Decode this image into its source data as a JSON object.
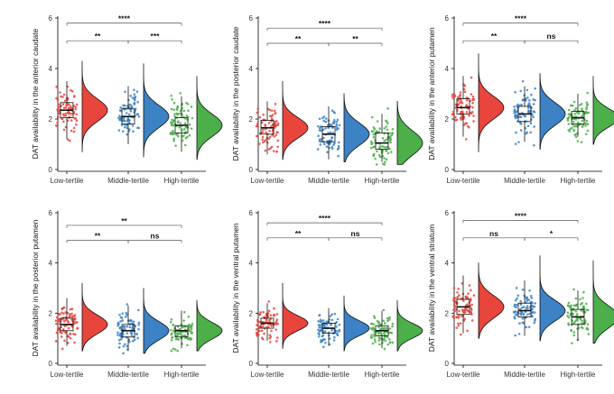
{
  "colors": {
    "low": "#E8453C",
    "middle": "#3C82C4",
    "high": "#4CAF4A",
    "axis": "#000000",
    "bracket": "#555555",
    "median": "#111111"
  },
  "chart_data": [
    {
      "type": "raincloud",
      "ylabel": "DAT availability in the anterior caudate",
      "categories": [
        "Low-tertile",
        "Middle-tertile",
        "High-tertile"
      ],
      "ylim": [
        0,
        6
      ],
      "yticks": [
        0,
        2,
        4,
        6
      ],
      "series": [
        {
          "name": "Low-tertile",
          "q1": 2.05,
          "median": 2.35,
          "q3": 2.65,
          "wlo": 1.2,
          "whi": 3.5,
          "min": 0.7,
          "max": 4.3,
          "n": 80
        },
        {
          "name": "Middle-tertile",
          "q1": 1.8,
          "median": 2.1,
          "q3": 2.4,
          "wlo": 1.0,
          "whi": 3.3,
          "min": 0.5,
          "max": 4.2,
          "n": 80
        },
        {
          "name": "High-tertile",
          "q1": 1.45,
          "median": 1.75,
          "q3": 2.05,
          "wlo": 0.7,
          "whi": 2.9,
          "min": 0.4,
          "max": 3.7,
          "n": 80
        }
      ],
      "comparisons": [
        {
          "from": 0,
          "to": 2,
          "label": "****",
          "y": 5.8
        },
        {
          "from": 0,
          "to": 1,
          "label": "**",
          "y": 5.1
        },
        {
          "from": 1,
          "to": 2,
          "label": "***",
          "y": 5.1
        }
      ]
    },
    {
      "type": "raincloud",
      "ylabel": "DAT availability in the posterior caudate",
      "categories": [
        "Low-tertile",
        "Middle-tertile",
        "High-tertile"
      ],
      "ylim": [
        0,
        6
      ],
      "yticks": [
        0,
        2,
        4,
        6
      ],
      "series": [
        {
          "name": "Low-tertile",
          "q1": 1.4,
          "median": 1.65,
          "q3": 1.95,
          "wlo": 0.6,
          "whi": 2.7,
          "min": 0.4,
          "max": 3.5,
          "n": 80
        },
        {
          "name": "Middle-tertile",
          "q1": 1.1,
          "median": 1.4,
          "q3": 1.7,
          "wlo": 0.4,
          "whi": 2.5,
          "min": 0.3,
          "max": 3.0,
          "n": 80
        },
        {
          "name": "High-tertile",
          "q1": 0.8,
          "median": 1.05,
          "q3": 1.45,
          "wlo": 0.3,
          "whi": 2.2,
          "min": 0.2,
          "max": 2.7,
          "n": 80
        }
      ],
      "comparisons": [
        {
          "from": 0,
          "to": 2,
          "label": "****",
          "y": 5.6
        },
        {
          "from": 0,
          "to": 1,
          "label": "**",
          "y": 5.0
        },
        {
          "from": 1,
          "to": 2,
          "label": "**",
          "y": 5.0
        }
      ]
    },
    {
      "type": "raincloud",
      "ylabel": "DAT availability in the anterior putamen",
      "categories": [
        "Low-tertile",
        "Middle-tertile",
        "High-tertile"
      ],
      "ylim": [
        0,
        6
      ],
      "yticks": [
        0,
        2,
        4,
        6
      ],
      "series": [
        {
          "name": "Low-tertile",
          "q1": 2.2,
          "median": 2.45,
          "q3": 2.8,
          "wlo": 1.3,
          "whi": 3.7,
          "min": 0.7,
          "max": 4.6,
          "n": 80
        },
        {
          "name": "Middle-tertile",
          "q1": 1.9,
          "median": 2.2,
          "q3": 2.5,
          "wlo": 1.1,
          "whi": 3.3,
          "min": 0.8,
          "max": 3.8,
          "n": 80
        },
        {
          "name": "High-tertile",
          "q1": 1.8,
          "median": 2.05,
          "q3": 2.3,
          "wlo": 1.3,
          "whi": 3.0,
          "min": 1.0,
          "max": 3.7,
          "n": 80
        }
      ],
      "comparisons": [
        {
          "from": 0,
          "to": 2,
          "label": "****",
          "y": 5.8
        },
        {
          "from": 0,
          "to": 1,
          "label": "**",
          "y": 5.1
        },
        {
          "from": 1,
          "to": 2,
          "label": "ns",
          "y": 5.1
        }
      ]
    },
    {
      "type": "raincloud",
      "ylabel": "DAT availability in the posterior putamen",
      "categories": [
        "Low-tertile",
        "Middle-tertile",
        "High-tertile"
      ],
      "ylim": [
        0,
        6
      ],
      "yticks": [
        0,
        2,
        4,
        6
      ],
      "series": [
        {
          "name": "Low-tertile",
          "q1": 1.3,
          "median": 1.55,
          "q3": 1.8,
          "wlo": 0.7,
          "whi": 2.6,
          "min": 0.5,
          "max": 3.2,
          "n": 80
        },
        {
          "name": "Middle-tertile",
          "q1": 1.05,
          "median": 1.3,
          "q3": 1.55,
          "wlo": 0.5,
          "whi": 2.3,
          "min": 0.4,
          "max": 3.0,
          "n": 80
        },
        {
          "name": "High-tertile",
          "q1": 1.05,
          "median": 1.3,
          "q3": 1.5,
          "wlo": 0.6,
          "whi": 2.1,
          "min": 0.5,
          "max": 2.5,
          "n": 80
        }
      ],
      "comparisons": [
        {
          "from": 0,
          "to": 2,
          "label": "**",
          "y": 5.5
        },
        {
          "from": 0,
          "to": 1,
          "label": "**",
          "y": 4.9
        },
        {
          "from": 1,
          "to": 2,
          "label": "ns",
          "y": 4.9
        }
      ]
    },
    {
      "type": "raincloud",
      "ylabel": "DAT availability in the ventral putamen",
      "categories": [
        "Low-tertile",
        "Middle-tertile",
        "High-tertile"
      ],
      "ylim": [
        0,
        6
      ],
      "yticks": [
        0,
        2,
        4,
        6
      ],
      "series": [
        {
          "name": "Low-tertile",
          "q1": 1.4,
          "median": 1.6,
          "q3": 1.8,
          "wlo": 0.9,
          "whi": 2.4,
          "min": 0.6,
          "max": 3.2,
          "n": 80
        },
        {
          "name": "Middle-tertile",
          "q1": 1.2,
          "median": 1.4,
          "q3": 1.6,
          "wlo": 0.7,
          "whi": 2.2,
          "min": 0.5,
          "max": 2.7,
          "n": 80
        },
        {
          "name": "High-tertile",
          "q1": 1.1,
          "median": 1.3,
          "q3": 1.5,
          "wlo": 0.6,
          "whi": 2.1,
          "min": 0.5,
          "max": 2.5,
          "n": 80
        }
      ],
      "comparisons": [
        {
          "from": 0,
          "to": 2,
          "label": "****",
          "y": 5.6
        },
        {
          "from": 0,
          "to": 1,
          "label": "**",
          "y": 5.0
        },
        {
          "from": 1,
          "to": 2,
          "label": "ns",
          "y": 5.0
        }
      ]
    },
    {
      "type": "raincloud",
      "ylabel": "DAT availability in the ventral striatum",
      "categories": [
        "Low-tertile",
        "Middle-tertile",
        "High-tertile"
      ],
      "ylim": [
        0,
        6
      ],
      "yticks": [
        0,
        2,
        4,
        6
      ],
      "series": [
        {
          "name": "Low-tertile",
          "q1": 1.95,
          "median": 2.25,
          "q3": 2.55,
          "wlo": 1.2,
          "whi": 3.5,
          "min": 1.0,
          "max": 4.0,
          "n": 80
        },
        {
          "name": "Middle-tertile",
          "q1": 1.85,
          "median": 2.1,
          "q3": 2.4,
          "wlo": 1.1,
          "whi": 3.3,
          "min": 0.9,
          "max": 4.3,
          "n": 80
        },
        {
          "name": "High-tertile",
          "q1": 1.55,
          "median": 1.85,
          "q3": 2.15,
          "wlo": 0.9,
          "whi": 2.9,
          "min": 0.8,
          "max": 4.1,
          "n": 80
        }
      ],
      "comparisons": [
        {
          "from": 0,
          "to": 2,
          "label": "****",
          "y": 5.7
        },
        {
          "from": 0,
          "to": 1,
          "label": "ns",
          "y": 5.0
        },
        {
          "from": 1,
          "to": 2,
          "label": "*",
          "y": 5.0
        }
      ]
    }
  ]
}
